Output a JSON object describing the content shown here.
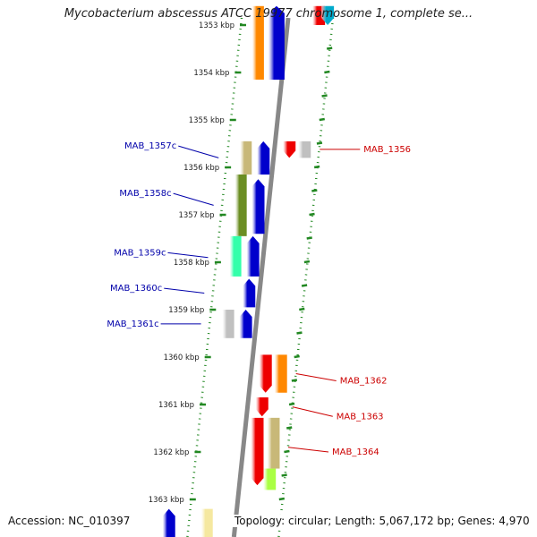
{
  "title": "Mycobacterium abscessus ATCC 19977 chromosome 1, complete se...",
  "accession": "Accession: NC_010397",
  "topology": "Topology: circular; Length: 5,067,172 bp; Genes: 4,970",
  "scale_ticks": [
    {
      "kbp": 1353,
      "label": "1353 kbp"
    },
    {
      "kbp": 1354,
      "label": "1354 kbp"
    },
    {
      "kbp": 1355,
      "label": "1355 kbp"
    },
    {
      "kbp": 1356,
      "label": "1356 kbp"
    },
    {
      "kbp": 1357,
      "label": "1357 kbp"
    },
    {
      "kbp": 1358,
      "label": "1358 kbp"
    },
    {
      "kbp": 1359,
      "label": "1359 kbp"
    },
    {
      "kbp": 1360,
      "label": "1360 kbp"
    },
    {
      "kbp": 1361,
      "label": "1361 kbp"
    },
    {
      "kbp": 1362,
      "label": "1362 kbp"
    },
    {
      "kbp": 1363,
      "label": "1363 kbp"
    }
  ],
  "forward_genes": [
    {
      "name": "MAB_1356",
      "start_kbp": 1355.45,
      "end_kbp": 1355.8,
      "color": "#ee0000"
    },
    {
      "name": "MAB_1362",
      "start_kbp": 1359.95,
      "end_kbp": 1360.75,
      "color": "#ee0000"
    },
    {
      "name": "MAB_1363",
      "start_kbp": 1360.85,
      "end_kbp": 1361.25,
      "color": "#ee0000"
    },
    {
      "name": "MAB_1364",
      "start_kbp": 1361.28,
      "end_kbp": 1362.7,
      "color": "#ee0000"
    }
  ],
  "reverse_genes": [
    {
      "name": "MAB_1357c",
      "start_kbp": 1355.45,
      "end_kbp": 1356.15,
      "color": "#0000cc"
    },
    {
      "name": "MAB_1358c",
      "start_kbp": 1356.25,
      "end_kbp": 1357.4,
      "color": "#0000cc"
    },
    {
      "name": "MAB_1359c",
      "start_kbp": 1357.45,
      "end_kbp": 1358.3,
      "color": "#0000cc"
    },
    {
      "name": "MAB_1360c",
      "start_kbp": 1358.35,
      "end_kbp": 1358.95,
      "color": "#0000cc"
    },
    {
      "name": "MAB_1361c",
      "start_kbp": 1359.0,
      "end_kbp": 1359.6,
      "color": "#0000cc"
    }
  ],
  "forward_labels": [
    {
      "text": "MAB_1356",
      "gene_kbp": 1355.62,
      "label_kbp": 1355.62
    },
    {
      "text": "MAB_1362",
      "gene_kbp": 1360.35,
      "label_kbp": 1360.5
    },
    {
      "text": "MAB_1363",
      "gene_kbp": 1361.05,
      "label_kbp": 1361.25
    },
    {
      "text": "MAB_1364",
      "gene_kbp": 1361.9,
      "label_kbp": 1362.0
    }
  ],
  "reverse_labels": [
    {
      "text": "MAB_1357c",
      "gene_kbp": 1355.8,
      "label_kbp": 1355.55
    },
    {
      "text": "MAB_1358c",
      "gene_kbp": 1356.8,
      "label_kbp": 1356.55
    },
    {
      "text": "MAB_1359c",
      "gene_kbp": 1357.9,
      "label_kbp": 1357.8
    },
    {
      "text": "MAB_1360c",
      "gene_kbp": 1358.65,
      "label_kbp": 1358.55
    },
    {
      "text": "MAB_1361c",
      "gene_kbp": 1359.3,
      "label_kbp": 1359.3
    }
  ],
  "features_forward_ring": [
    {
      "start_kbp": 1352.6,
      "end_kbp": 1353.0,
      "color": "#ee0000"
    },
    {
      "start_kbp": 1355.45,
      "end_kbp": 1355.8,
      "color": "#c0c0c0"
    },
    {
      "start_kbp": 1359.95,
      "end_kbp": 1360.75,
      "color": "#ff8800"
    },
    {
      "start_kbp": 1361.28,
      "end_kbp": 1362.35,
      "color": "#c8b878"
    },
    {
      "start_kbp": 1362.35,
      "end_kbp": 1362.8,
      "color": "#aaff44"
    }
  ],
  "features_reverse_ring": [
    {
      "start_kbp": 1352.6,
      "end_kbp": 1354.15,
      "color": "#ff8800"
    },
    {
      "start_kbp": 1355.45,
      "end_kbp": 1356.15,
      "color": "#c8b878"
    },
    {
      "start_kbp": 1356.15,
      "end_kbp": 1357.45,
      "color": "#6b8e23"
    },
    {
      "start_kbp": 1357.45,
      "end_kbp": 1358.3,
      "color": "#33ffaa"
    },
    {
      "start_kbp": 1359.0,
      "end_kbp": 1359.6,
      "color": "#c0c0c0"
    },
    {
      "start_kbp": 1363.2,
      "end_kbp": 1363.9,
      "color": "#f5e8a0"
    }
  ],
  "legend_color_forward": "#cc0000",
  "legend_color_reverse": "#0000aa",
  "backbone_color": "#888888",
  "tick_color": "#228822"
}
